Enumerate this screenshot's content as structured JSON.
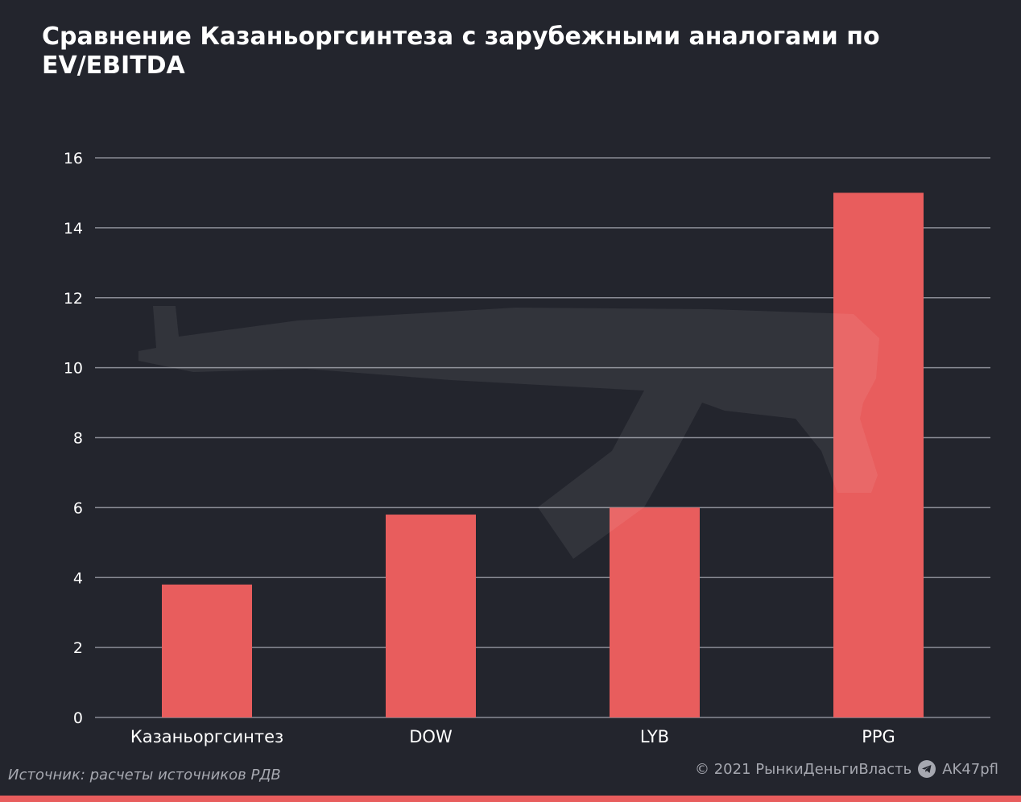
{
  "title": "Сравнение Казаньоргсинтеза с зарубежными аналогами по EV/EBITDA",
  "source": "Источник: расчеты источников РДВ",
  "copyright": "© 2021  РынкиДеньгиВласть",
  "telegram_handle": "AK47pfl",
  "icons": {
    "telegram": "telegram-icon",
    "watermark": "rifle-silhouette"
  },
  "colors": {
    "background": "#23252d",
    "bar": "#e85d5d",
    "grid": "#8a8c95",
    "text": "#ffffff",
    "muted": "#a6a8b0"
  },
  "chart_data": {
    "type": "bar",
    "title": "Сравнение Казаньоргсинтеза с зарубежными аналогами по EV/EBITDA",
    "categories": [
      "Казаньоргсинтез",
      "DOW",
      "LYB",
      "PPG"
    ],
    "values": [
      3.8,
      5.8,
      6.0,
      15.0
    ],
    "ylim": [
      0,
      16
    ],
    "yticks": [
      0,
      2,
      4,
      6,
      8,
      10,
      12,
      14,
      16
    ],
    "grid": true,
    "xlabel": "",
    "ylabel": ""
  }
}
